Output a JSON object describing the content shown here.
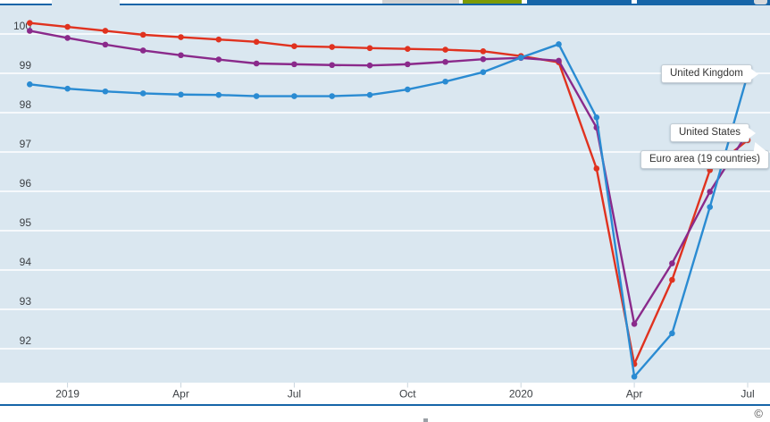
{
  "top_bar": {
    "border_color": "#1665a8",
    "active_tab": {
      "name": "active-tab-partial"
    },
    "buttons": [
      {
        "name": "toolbar-button-gray",
        "color": "#d2d2d2"
      },
      {
        "name": "toolbar-button-green",
        "color": "#7d9b03"
      },
      {
        "name": "toolbar-button-blue-1",
        "color": "#1665a8"
      },
      {
        "name": "toolbar-button-blue-2",
        "color": "#1665a8"
      }
    ]
  },
  "footer": {
    "copyright": "©"
  },
  "chart_data": {
    "type": "line",
    "title": "",
    "xlabel": "",
    "ylabel": "",
    "grid": true,
    "background_color": "#dae7f0",
    "gridline_color": "#ffffff",
    "axis_text_color": "#3d4145",
    "legend_position": "end-of-line-callouts",
    "ylim": [
      91,
      100.6
    ],
    "y_ticks": [
      100,
      99,
      98,
      97,
      96,
      95,
      94,
      93,
      92
    ],
    "x": [
      "Dec 2018",
      "Jan 2019",
      "Feb 2019",
      "Mar 2019",
      "Apr 2019",
      "May 2019",
      "Jun 2019",
      "Jul 2019",
      "Aug 2019",
      "Sep 2019",
      "Oct 2019",
      "Nov 2019",
      "Dec 2019",
      "Jan 2020",
      "Feb 2020",
      "Mar 2020",
      "Apr 2020",
      "May 2020",
      "Jun 2020",
      "Jul 2020"
    ],
    "x_tick_labels": [
      {
        "label": "2019",
        "index": 1
      },
      {
        "label": "Apr",
        "index": 4
      },
      {
        "label": "Jul",
        "index": 7
      },
      {
        "label": "Oct",
        "index": 10
      },
      {
        "label": "2020",
        "index": 13
      },
      {
        "label": "Apr",
        "index": 16
      },
      {
        "label": "Jul",
        "index": 19
      }
    ],
    "series": [
      {
        "name": "Euro area (19 countries)",
        "color": "#e0321f",
        "values": [
          100.28,
          100.18,
          100.08,
          99.98,
          99.92,
          99.86,
          99.8,
          99.69,
          99.67,
          99.64,
          99.62,
          99.6,
          99.56,
          99.44,
          99.28,
          96.58,
          91.61,
          93.75,
          96.54,
          97.3
        ]
      },
      {
        "name": "United States",
        "color": "#8a2a8b",
        "values": [
          100.08,
          99.9,
          99.73,
          99.58,
          99.46,
          99.35,
          99.25,
          99.23,
          99.21,
          99.2,
          99.23,
          99.29,
          99.36,
          99.39,
          99.32,
          97.62,
          92.63,
          94.17,
          95.99,
          97.49
        ]
      },
      {
        "name": "United Kingdom",
        "color": "#2a8bd2",
        "values": [
          98.72,
          98.61,
          98.54,
          98.49,
          98.46,
          98.45,
          98.42,
          98.42,
          98.42,
          98.45,
          98.59,
          98.79,
          99.03,
          99.4,
          99.74,
          97.88,
          91.29,
          92.39,
          95.6,
          98.97
        ]
      }
    ]
  }
}
